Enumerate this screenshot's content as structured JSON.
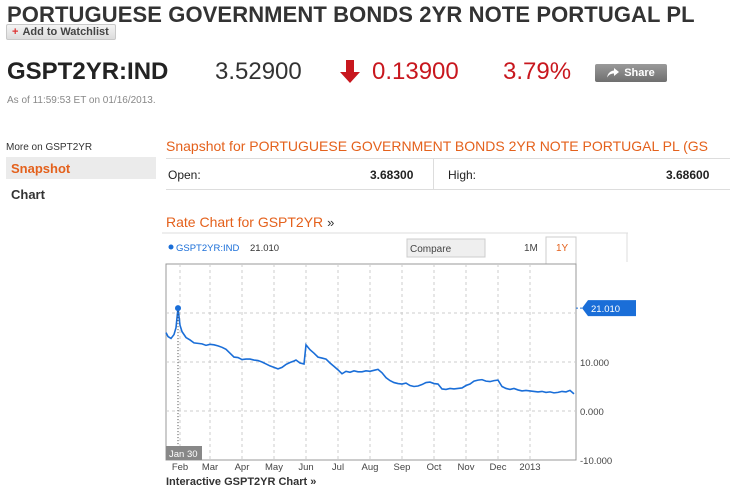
{
  "header": {
    "title": "PORTUGUESE GOVERNMENT BONDS 2YR NOTE PORTUGAL PL",
    "watchlist_label": "Add to Watchlist"
  },
  "quote": {
    "ticker": "GSPT2YR:IND",
    "price": "3.52900",
    "change": "0.13900",
    "change_pct": "3.79%",
    "direction": "down",
    "share_label": "Share",
    "as_of": "As of 11:59:53 ET on 01/16/2013.",
    "down_color": "#c8171e"
  },
  "sidebar": {
    "more_label": "More on GSPT2YR",
    "items": [
      {
        "label": "Snapshot",
        "active": true
      },
      {
        "label": "Chart",
        "active": false
      }
    ]
  },
  "snapshot": {
    "title": "Snapshot for PORTUGUESE GOVERNMENT BONDS 2YR NOTE PORTUGAL PL (GS",
    "open_label": "Open:",
    "open_value": "3.68300",
    "high_label": "High:",
    "high_value": "3.68600"
  },
  "rate_chart": {
    "title": "Rate Chart for GSPT2YR",
    "legend_label": "GSPT2YR:IND",
    "legend_value": "21.010",
    "compare_label": "Compare",
    "range_1m": "1M",
    "range_1y": "1Y",
    "active_range": "1Y",
    "last_value_label": "21.010",
    "hover_date": "Jan 30",
    "interactive_link": "Interactive GSPT2YR Chart"
  },
  "chart_data": {
    "type": "line",
    "title": "",
    "xlabel": "",
    "ylabel": "",
    "ylim": [
      -10,
      30
    ],
    "y_ticks": [
      -10,
      0,
      10
    ],
    "y_tick_labels": [
      "-10.000",
      "0.000",
      "10.000"
    ],
    "x_tick_labels": [
      "Feb",
      "Mar",
      "Apr",
      "May",
      "Jun",
      "Jul",
      "Aug",
      "Sep",
      "Oct",
      "Nov",
      "Dec",
      "2013"
    ],
    "grid": true,
    "line_color": "#1a6ed8",
    "series": [
      {
        "name": "GSPT2YR:IND",
        "x": [
          0,
          2,
          5,
          8,
          10,
          12,
          14,
          16,
          20,
          24,
          28,
          32,
          36,
          40,
          44,
          48,
          52,
          56,
          60,
          64,
          68,
          72,
          76,
          80,
          84,
          88,
          92,
          96,
          100,
          104,
          108,
          112,
          116,
          120,
          124,
          128,
          130,
          134,
          138,
          140,
          144,
          148,
          152,
          156,
          160,
          164,
          168,
          172,
          176,
          180,
          184,
          188,
          192,
          196,
          200,
          204,
          208,
          212,
          216,
          220,
          224,
          228,
          232,
          236,
          240,
          244,
          248,
          252,
          256,
          260,
          264,
          268,
          272,
          276,
          280,
          284,
          288,
          292,
          296,
          300,
          304,
          308,
          312,
          316,
          320,
          324,
          328,
          332,
          336,
          340,
          344,
          348,
          352,
          356,
          360,
          364,
          368,
          372,
          376,
          380,
          384,
          388,
          392,
          396,
          400,
          404,
          408
        ],
        "y": [
          16.0,
          15.2,
          14.8,
          15.6,
          17.0,
          21.0,
          17.5,
          16.2,
          15.0,
          14.5,
          13.9,
          13.8,
          13.7,
          13.4,
          13.6,
          13.5,
          13.3,
          13.0,
          12.6,
          11.8,
          11.0,
          10.9,
          10.5,
          10.6,
          10.6,
          10.4,
          10.3,
          10.0,
          9.6,
          9.2,
          8.9,
          8.6,
          8.9,
          9.5,
          9.9,
          10.2,
          10.4,
          9.8,
          9.6,
          13.5,
          12.5,
          11.8,
          11.0,
          10.8,
          10.6,
          9.8,
          9.1,
          8.4,
          7.6,
          8.1,
          7.9,
          8.2,
          8.0,
          8.0,
          8.2,
          8.1,
          8.3,
          8.5,
          7.8,
          6.8,
          6.2,
          5.8,
          5.6,
          5.5,
          5.7,
          5.2,
          5.0,
          5.1,
          5.4,
          5.8,
          5.9,
          5.6,
          5.5,
          4.5,
          4.4,
          4.6,
          4.5,
          4.6,
          4.7,
          5.2,
          5.5,
          6.1,
          6.3,
          6.4,
          6.1,
          6.0,
          6.2,
          6.3,
          5.0,
          4.6,
          4.4,
          4.6,
          4.3,
          4.1,
          4.2,
          4.1,
          4.0,
          3.9,
          4.0,
          3.8,
          3.9,
          3.7,
          3.8,
          4.0,
          3.9,
          4.2,
          3.5
        ]
      }
    ],
    "x_tick_positions_days": [
      14,
      44,
      76,
      108,
      140,
      172,
      204,
      236,
      268,
      300,
      332,
      364
    ]
  }
}
